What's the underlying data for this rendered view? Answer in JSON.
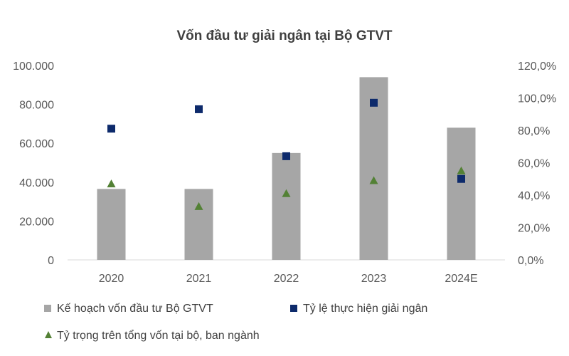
{
  "chart_data": {
    "type": "bar",
    "title": "Vốn đầu tư giải ngân tại Bộ GTVT",
    "categories": [
      "2020",
      "2021",
      "2022",
      "2023",
      "2024E"
    ],
    "y_left": {
      "min": 0,
      "max": 100000,
      "ticks": [
        0,
        20000,
        40000,
        60000,
        80000,
        100000
      ],
      "tick_labels": [
        "0",
        "20.000",
        "40.000",
        "60.000",
        "80.000",
        "100.000"
      ]
    },
    "y_right": {
      "min": 0,
      "max": 120,
      "ticks": [
        0,
        20,
        40,
        60,
        80,
        100,
        120
      ],
      "tick_labels": [
        "0,0%",
        "20,0%",
        "40,0%",
        "60,0%",
        "80,0%",
        "100,0%",
        "120,0%"
      ]
    },
    "series": [
      {
        "name": "Kế hoạch vốn đầu tư Bộ GTVT",
        "kind": "bar",
        "axis": "left",
        "color": "#a6a6a6",
        "values": [
          36500,
          36500,
          55000,
          94000,
          68000
        ]
      },
      {
        "name": "Tỷ lệ thực hiện giải ngân",
        "kind": "square",
        "axis": "right",
        "color": "#0d2a6b",
        "values": [
          81,
          93,
          64,
          97,
          50
        ]
      },
      {
        "name": "Tỷ trọng trên tổng vốn tại bộ, ban ngành",
        "kind": "triangle",
        "axis": "right",
        "color": "#538135",
        "values": [
          47,
          33,
          41,
          49,
          55
        ]
      }
    ]
  }
}
